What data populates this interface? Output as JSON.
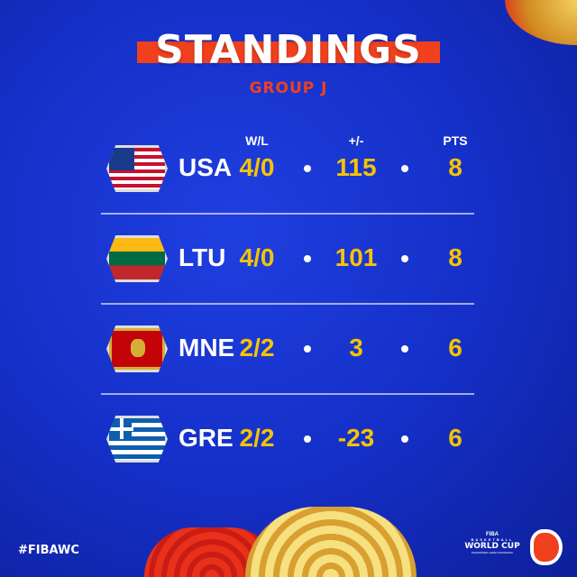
{
  "header": {
    "title": "STANDINGS",
    "subtitle": "GROUP J"
  },
  "columns": {
    "wl": "W/L",
    "diff": "+/-",
    "pts": "PTS"
  },
  "rows": [
    {
      "code": "USA",
      "flag": "usa-flag",
      "wl": "4/0",
      "diff": "115",
      "pts": "8"
    },
    {
      "code": "LTU",
      "flag": "lithuania-flag",
      "wl": "4/0",
      "diff": "101",
      "pts": "8"
    },
    {
      "code": "MNE",
      "flag": "montenegro-flag",
      "wl": "2/2",
      "diff": "3",
      "pts": "6"
    },
    {
      "code": "GRE",
      "flag": "greece-flag",
      "wl": "2/2",
      "diff": "-23",
      "pts": "6"
    }
  ],
  "footer": {
    "hashtag": "#FIBAWC",
    "logo": {
      "org": "FIBA",
      "line1": "BASKETBALL",
      "line2": "WORLD CUP",
      "line3": "PHILIPPINES JAPAN INDONESIA"
    }
  },
  "colors": {
    "background": "#1530c8",
    "accent": "#f0401e",
    "value": "#f5c400"
  }
}
